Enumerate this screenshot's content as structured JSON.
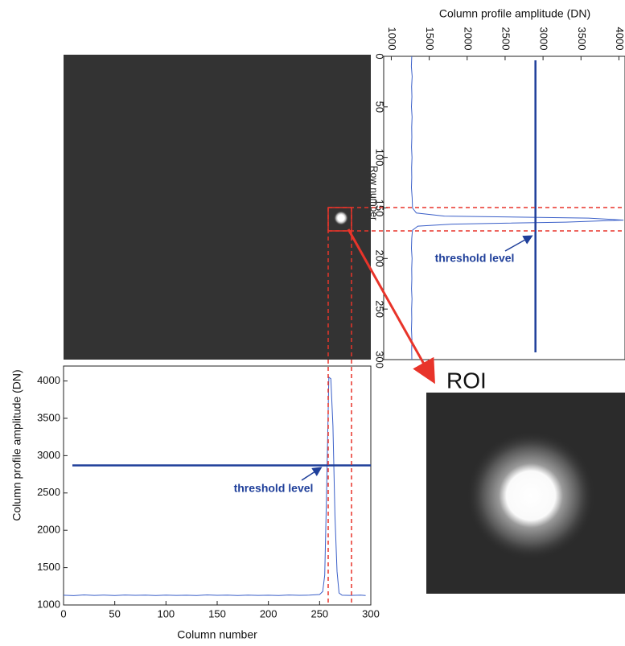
{
  "chart_data": [
    {
      "type": "line",
      "orientation": "horizontal",
      "x_label": "Column number",
      "y_label": "Column profile amplitude (DN)",
      "annotation": "threshold level",
      "threshold": 2870,
      "x": [
        0,
        10,
        20,
        30,
        40,
        50,
        60,
        70,
        80,
        90,
        100,
        110,
        120,
        130,
        140,
        150,
        160,
        170,
        180,
        190,
        200,
        210,
        220,
        230,
        240,
        250,
        253,
        255,
        257,
        259,
        261,
        263,
        265,
        267,
        269,
        272,
        280,
        290,
        295
      ],
      "values": [
        1130,
        1125,
        1135,
        1128,
        1132,
        1126,
        1134,
        1129,
        1131,
        1127,
        1133,
        1128,
        1130,
        1126,
        1135,
        1129,
        1131,
        1127,
        1133,
        1128,
        1130,
        1126,
        1134,
        1129,
        1131,
        1140,
        1180,
        1400,
        2600,
        4050,
        4030,
        3400,
        2200,
        1450,
        1160,
        1130,
        1128,
        1132,
        1127
      ],
      "color": "#3a5fc8",
      "xlim": [
        0,
        300
      ],
      "xticks": [
        0,
        50,
        100,
        150,
        200,
        250,
        300
      ],
      "ylim": [
        1000,
        4200
      ],
      "yticks": [
        1000,
        1500,
        2000,
        2500,
        3000,
        3500,
        4000
      ]
    },
    {
      "type": "line",
      "orientation": "rotated",
      "x_label": "Row number",
      "y_label": "Column profile amplitude (DN)",
      "annotation": "threshold level",
      "threshold": 2900,
      "x": [
        0,
        10,
        20,
        30,
        40,
        50,
        60,
        70,
        80,
        90,
        100,
        110,
        120,
        130,
        140,
        150,
        155,
        158,
        160,
        162,
        164,
        166,
        168,
        172,
        180,
        190,
        200,
        210,
        220,
        230,
        240,
        250,
        260,
        270,
        280,
        290,
        300
      ],
      "values": [
        1270,
        1265,
        1275,
        1268,
        1272,
        1266,
        1274,
        1269,
        1271,
        1267,
        1273,
        1268,
        1270,
        1266,
        1275,
        1280,
        1330,
        1700,
        3600,
        4060,
        3300,
        1800,
        1350,
        1280,
        1270,
        1266,
        1274,
        1269,
        1271,
        1267,
        1273,
        1268,
        1270,
        1266,
        1272,
        1269,
        1271
      ],
      "color": "#3a5fc8",
      "xlim": [
        0,
        300
      ],
      "xticks": [
        0,
        50,
        100,
        150,
        200,
        250,
        300
      ],
      "ylim": [
        900,
        4080
      ],
      "yticks": [
        1000,
        1500,
        2000,
        2500,
        3000,
        3500,
        4000
      ]
    }
  ],
  "roi": {
    "label": "ROI"
  }
}
